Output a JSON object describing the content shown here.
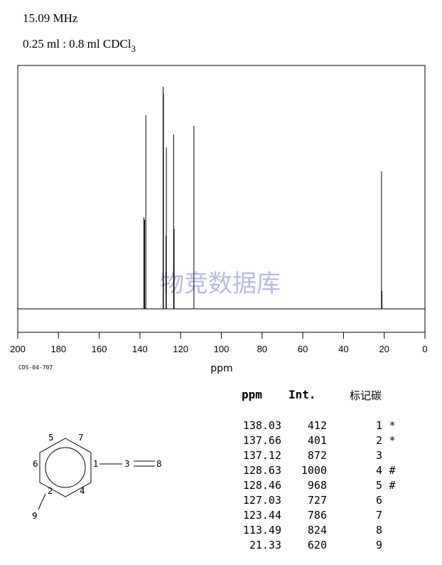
{
  "header": {
    "frequency": "15.09 MHz",
    "concentration": "0.25 ml : 0.8 ml CDCl",
    "concentration_sub": "3"
  },
  "watermark": "物竞数据库",
  "spectrum_code": "CDS-04-707",
  "chart_data": {
    "type": "line",
    "subtype": "nmr-stick-spectrum",
    "xlabel": "ppm",
    "xlim": [
      200,
      0
    ],
    "x_ticks": [
      200,
      180,
      160,
      140,
      120,
      100,
      80,
      60,
      40,
      20,
      0
    ],
    "x_axis_reversed": true,
    "baseline": 0,
    "ylim": [
      0,
      1000
    ],
    "grid": false,
    "peaks": [
      {
        "ppm": 138.03,
        "intensity": 412
      },
      {
        "ppm": 137.66,
        "intensity": 401
      },
      {
        "ppm": 137.12,
        "intensity": 872
      },
      {
        "ppm": 128.63,
        "intensity": 1000
      },
      {
        "ppm": 128.46,
        "intensity": 968
      },
      {
        "ppm": 127.03,
        "intensity": 727
      },
      {
        "ppm": 123.44,
        "intensity": 786
      },
      {
        "ppm": 113.49,
        "intensity": 824
      },
      {
        "ppm": 21.33,
        "intensity": 620
      }
    ],
    "extra_peaks": [
      {
        "ppm": 127.2,
        "intensity": 330
      },
      {
        "ppm": 123.2,
        "intensity": 360
      },
      {
        "ppm": 21.1,
        "intensity": 80
      }
    ]
  },
  "table": {
    "headers": {
      "ppm": "ppm",
      "int": "Int.",
      "label": "标记碳"
    },
    "rows": [
      {
        "ppm": "138.03",
        "int": "412",
        "label": "1",
        "mark": "*"
      },
      {
        "ppm": "137.66",
        "int": "401",
        "label": "2",
        "mark": "*"
      },
      {
        "ppm": "137.12",
        "int": "872",
        "label": "3",
        "mark": ""
      },
      {
        "ppm": "128.63",
        "int": "1000",
        "label": "4",
        "mark": "#"
      },
      {
        "ppm": "128.46",
        "int": "968",
        "label": "5",
        "mark": "#"
      },
      {
        "ppm": "127.03",
        "int": "727",
        "label": "6",
        "mark": ""
      },
      {
        "ppm": "123.44",
        "int": "786",
        "label": "7",
        "mark": ""
      },
      {
        "ppm": "113.49",
        "int": "824",
        "label": "8",
        "mark": ""
      },
      {
        "ppm": "21.33",
        "int": "620",
        "label": "9",
        "mark": ""
      }
    ]
  },
  "structure": {
    "atoms": [
      "1",
      "2",
      "3",
      "4",
      "5",
      "6",
      "7",
      "8",
      "9"
    ]
  }
}
